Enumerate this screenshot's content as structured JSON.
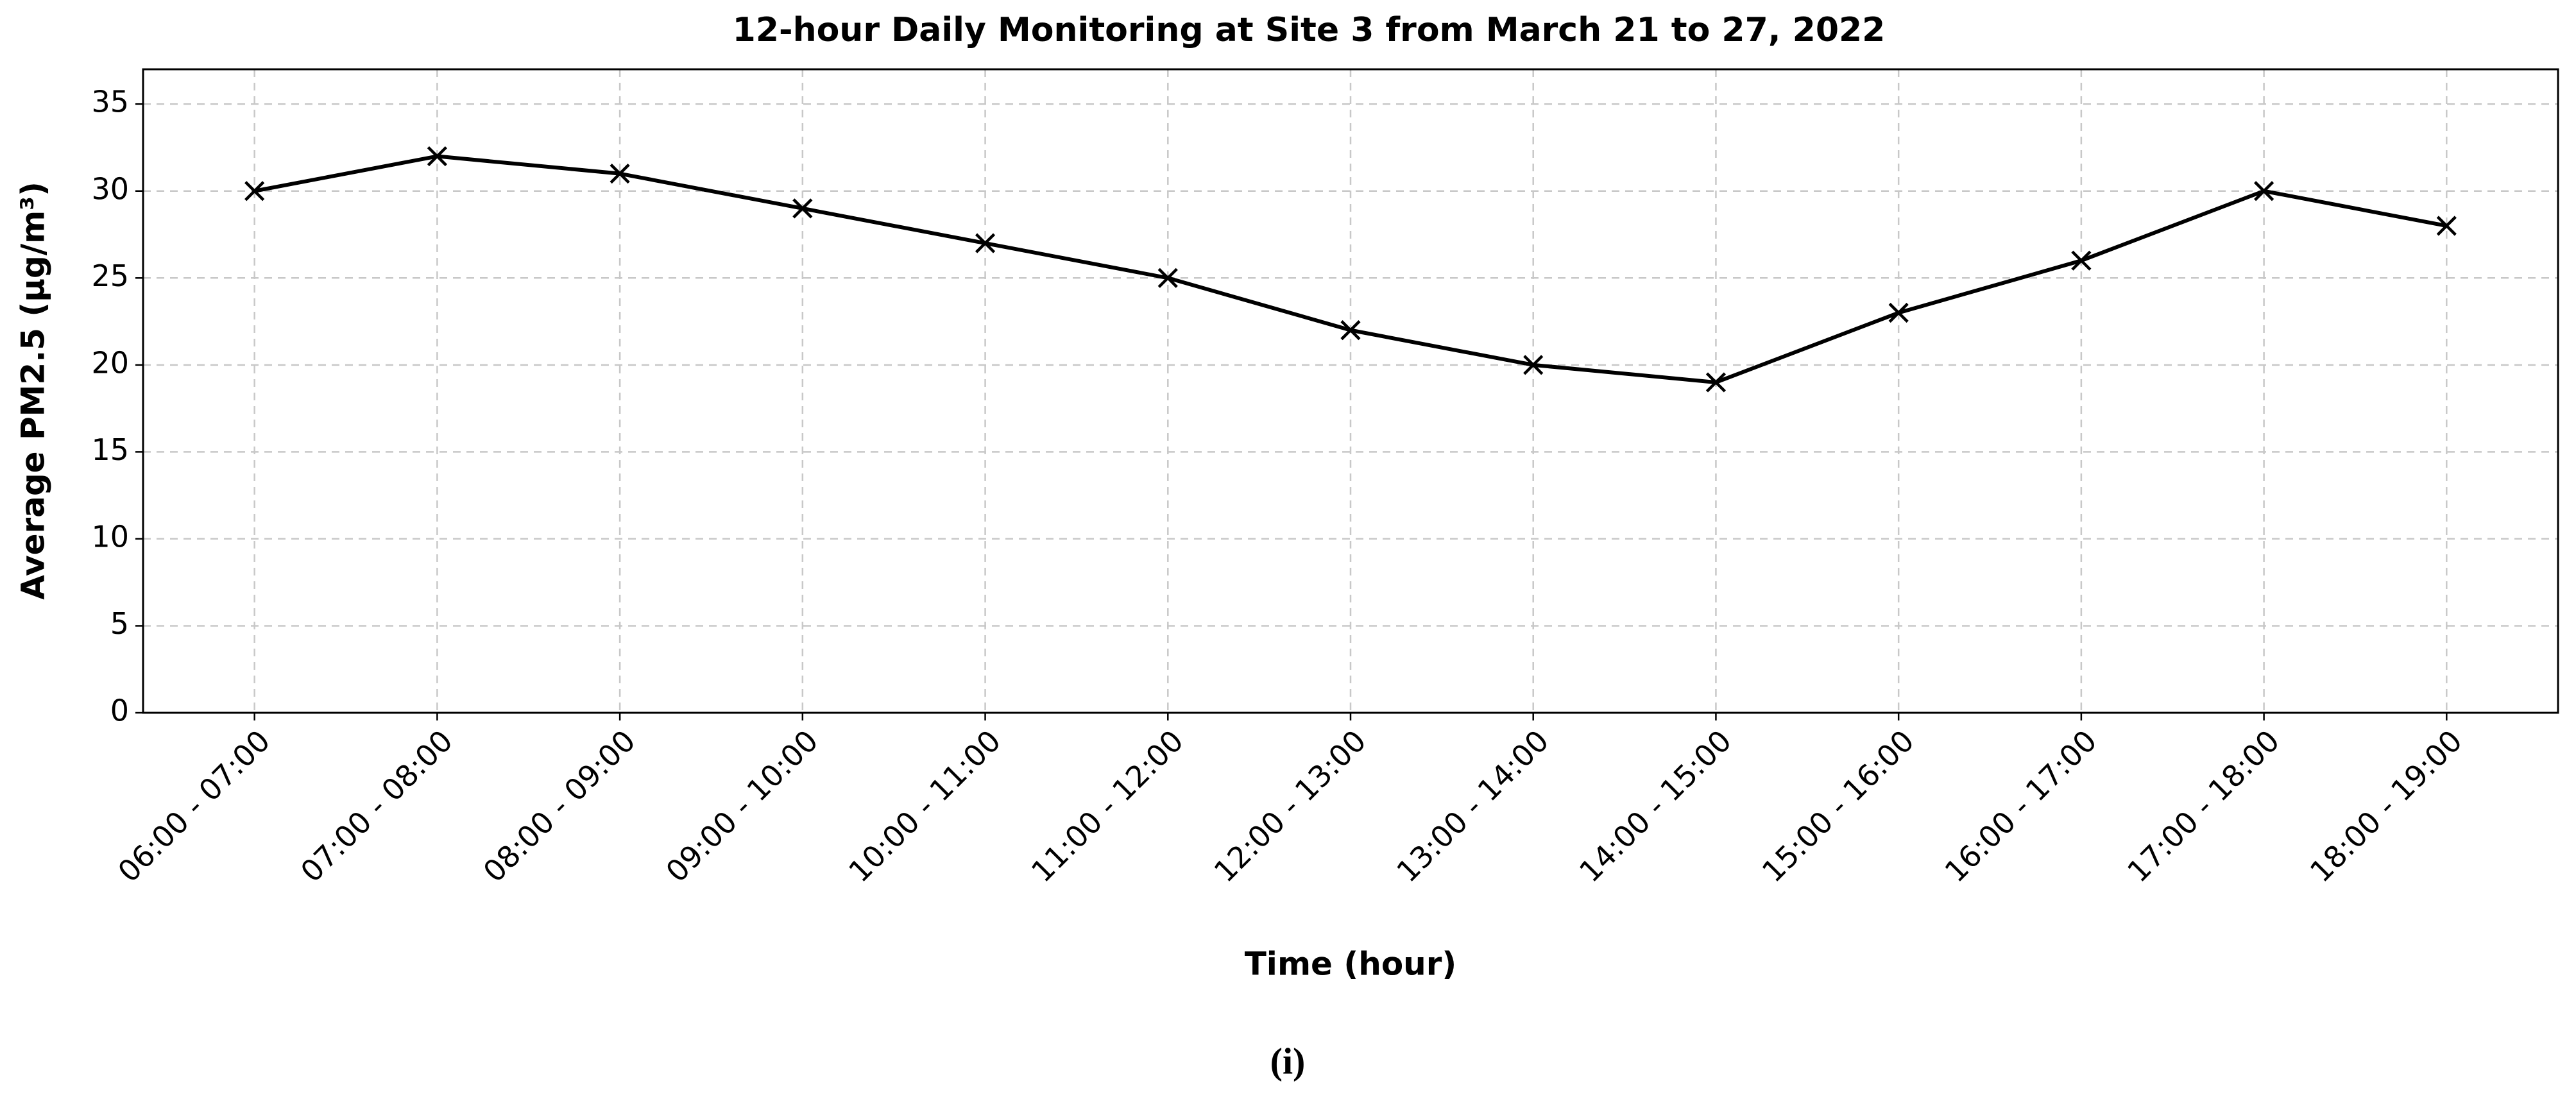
{
  "chart_data": {
    "type": "line",
    "title": "12-hour Daily Monitoring at Site 3 from March 21 to 27, 2022",
    "x_label": "Time (hour)",
    "y_label": "Average PM2.5 (µg/m³)",
    "caption": "(i)",
    "categories": [
      "06:00 - 07:00",
      "07:00 - 08:00",
      "08:00 - 09:00",
      "09:00 - 10:00",
      "10:00 - 11:00",
      "11:00 - 12:00",
      "12:00 - 13:00",
      "13:00 - 14:00",
      "14:00 - 15:00",
      "15:00 - 16:00",
      "16:00 - 17:00",
      "17:00 - 18:00",
      "18:00 - 19:00"
    ],
    "values": [
      30,
      32,
      31,
      29,
      27,
      25,
      22,
      20,
      19,
      23,
      26,
      30,
      28
    ],
    "color": "#000000",
    "marker": "x",
    "ylim": [
      0,
      37
    ],
    "yticks": [
      0,
      5,
      10,
      15,
      20,
      25,
      30,
      35
    ],
    "grid": true
  }
}
